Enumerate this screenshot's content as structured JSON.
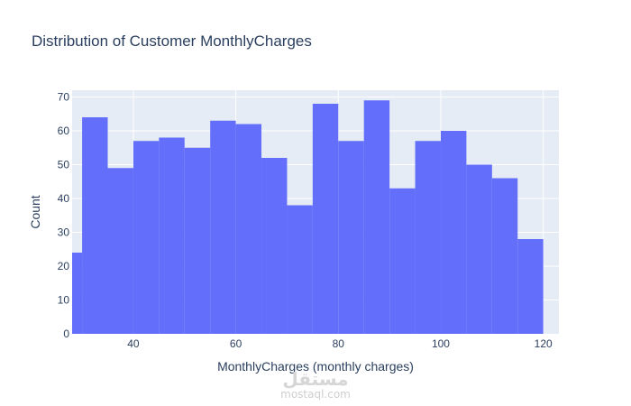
{
  "chart_data": {
    "type": "bar",
    "title": "Distribution of Customer MonthlyCharges",
    "xlabel": "MonthlyCharges (monthly charges)",
    "ylabel": "Count",
    "bins": [
      {
        "x0": 25,
        "x1": 30,
        "count": 24
      },
      {
        "x0": 30,
        "x1": 35,
        "count": 64
      },
      {
        "x0": 35,
        "x1": 40,
        "count": 49
      },
      {
        "x0": 40,
        "x1": 45,
        "count": 57
      },
      {
        "x0": 45,
        "x1": 50,
        "count": 58
      },
      {
        "x0": 50,
        "x1": 55,
        "count": 55
      },
      {
        "x0": 55,
        "x1": 60,
        "count": 63
      },
      {
        "x0": 60,
        "x1": 65,
        "count": 62
      },
      {
        "x0": 65,
        "x1": 70,
        "count": 52
      },
      {
        "x0": 70,
        "x1": 75,
        "count": 38
      },
      {
        "x0": 75,
        "x1": 80,
        "count": 68
      },
      {
        "x0": 80,
        "x1": 85,
        "count": 57
      },
      {
        "x0": 85,
        "x1": 90,
        "count": 69
      },
      {
        "x0": 90,
        "x1": 95,
        "count": 43
      },
      {
        "x0": 95,
        "x1": 100,
        "count": 57
      },
      {
        "x0": 100,
        "x1": 105,
        "count": 60
      },
      {
        "x0": 105,
        "x1": 110,
        "count": 50
      },
      {
        "x0": 110,
        "x1": 115,
        "count": 46
      },
      {
        "x0": 115,
        "x1": 120,
        "count": 28
      }
    ],
    "xlim": [
      28.05,
      123.05
    ],
    "ylim": [
      0,
      72
    ],
    "xticks": [
      40,
      60,
      80,
      100,
      120
    ],
    "yticks": [
      0,
      10,
      20,
      30,
      40,
      50,
      60,
      70
    ],
    "grid": true,
    "legend": "none",
    "bar_color": "#636efa",
    "plot_bg": "#e5ecf6"
  },
  "watermark": {
    "logo": "مستقل",
    "site": "mostaql.com"
  }
}
